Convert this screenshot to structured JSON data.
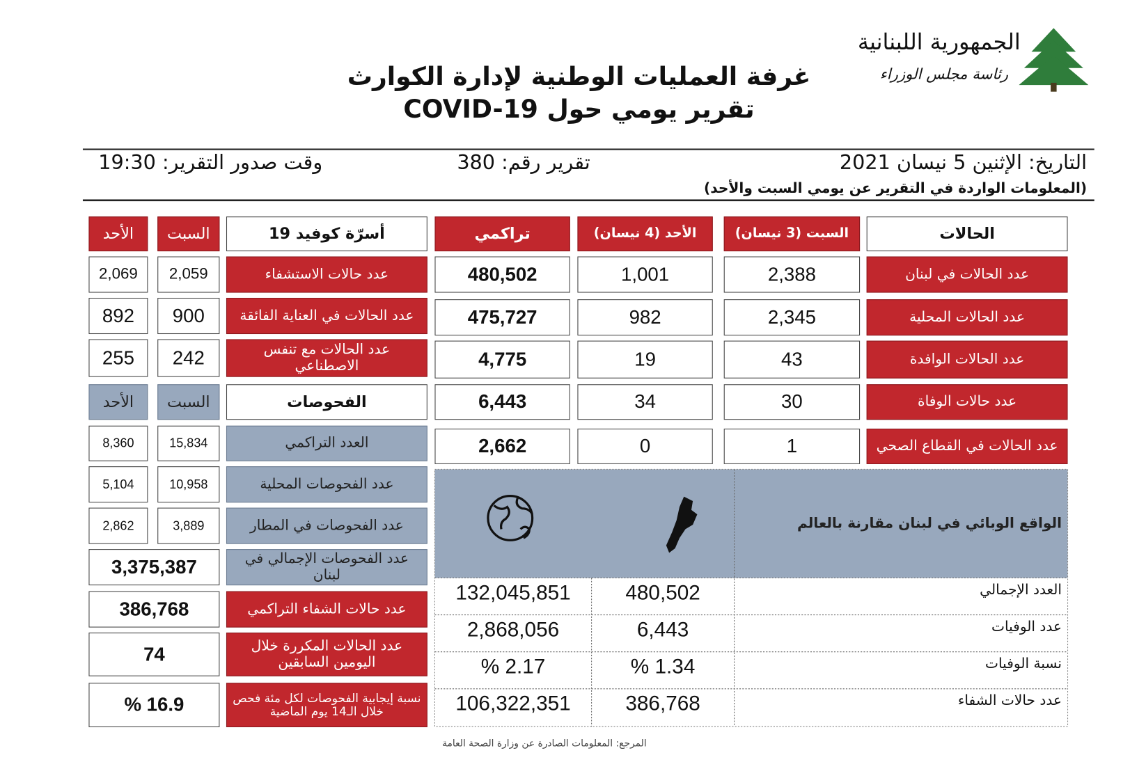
{
  "header": {
    "logo_line1": "الجمهورية اللبنانية",
    "logo_line2": "رئاسة مجلس الوزراء",
    "title": "غرفة العمليات الوطنية لإدارة الكوارث",
    "subtitle": "تقرير يومي حول COVID-19"
  },
  "info": {
    "date": "التاريخ: الإثنين 5 نيسان 2021",
    "report_no": "تقرير رقم: 380",
    "time": "وقت صدور التقرير: 19:30",
    "note": "(المعلومات الواردة في التقرير عن يومي السبت والأحد)"
  },
  "cases": {
    "header": [
      "الحالات",
      "السبت (3 نيسان)",
      "الأحد (4 نيسان)",
      "تراكمي"
    ],
    "rows": [
      [
        "عدد الحالات في لبنان",
        "2,388",
        "1,001",
        "480,502"
      ],
      [
        "عدد الحالات المحلية",
        "2,345",
        "982",
        "475,727"
      ],
      [
        "عدد الحالات الوافدة",
        "43",
        "19",
        "4,775"
      ],
      [
        "عدد حالات الوفاة",
        "30",
        "34",
        "6,443"
      ],
      [
        "عدد الحالات في القطاع الصحي",
        "1",
        "0",
        "2,662"
      ]
    ]
  },
  "beds": {
    "header": [
      "أسرّة كوفيد 19",
      "السبت",
      "الأحد"
    ],
    "rows": [
      [
        "عدد حالات الاستشفاء",
        "2,059",
        "2,069"
      ],
      [
        "عدد الحالات في العناية الفائقة",
        "900",
        "892"
      ],
      [
        "عدد الحالات مع تنفس الاصطناعي",
        "242",
        "255"
      ]
    ]
  },
  "tests": {
    "header": [
      "الفحوصات",
      "السبت",
      "الأحد"
    ],
    "rows": [
      [
        "العدد التراكمي",
        "15,834",
        "8,360"
      ],
      [
        "عدد الفحوصات المحلية",
        "10,958",
        "5,104"
      ],
      [
        "عدد الفحوصات في المطار",
        "3,889",
        "2,862"
      ]
    ]
  },
  "summary": [
    [
      "عدد الفحوصات الإجمالي في لبنان",
      "3,375,387"
    ],
    [
      "عدد حالات الشفاء التراكمي",
      "386,768"
    ],
    [
      "عدد الحالات المكررة خلال اليومين السابقين",
      "74"
    ],
    [
      "نسبة إيجابية الفحوصات لكل مئة فحص خلال الـ14 يوم الماضية",
      "16.9 %"
    ]
  ],
  "comparison": {
    "title": "الواقع الوبائي في لبنان مقارنة بالعالم",
    "rows": [
      [
        "العدد الإجمالي",
        "480,502",
        "132,045,851"
      ],
      [
        "عدد الوفيات",
        "6,443",
        "2,868,056"
      ],
      [
        "نسبة الوفيات",
        "1.34 %",
        "2.17 %"
      ],
      [
        "عدد حالات الشفاء",
        "386,768",
        "106,322,351"
      ]
    ]
  },
  "source": "المرجع: المعلومات الصادرة عن وزارة الصحة العامة"
}
